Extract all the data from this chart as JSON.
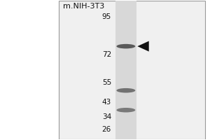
{
  "title": "m.NIH-3T3",
  "mw_markers": [
    95,
    72,
    55,
    43,
    34,
    26
  ],
  "bands": [
    {
      "kda": 77,
      "intensity": 0.8,
      "is_main": true
    },
    {
      "kda": 50,
      "intensity": 0.65,
      "is_main": false
    },
    {
      "kda": 38,
      "intensity": 0.6,
      "is_main": false
    }
  ],
  "arrow_kda": 77,
  "bg_color": "#ffffff",
  "box_bg_color": "#f0f0f0",
  "lane_color": "#d8d8d8",
  "band_color": "#3a3a3a",
  "border_color": "#999999",
  "mw_color": "#111111",
  "title_color": "#111111",
  "title_fontsize": 8,
  "mw_fontsize": 7.5,
  "arrow_color": "#111111",
  "ymin": 20,
  "ymax": 105
}
